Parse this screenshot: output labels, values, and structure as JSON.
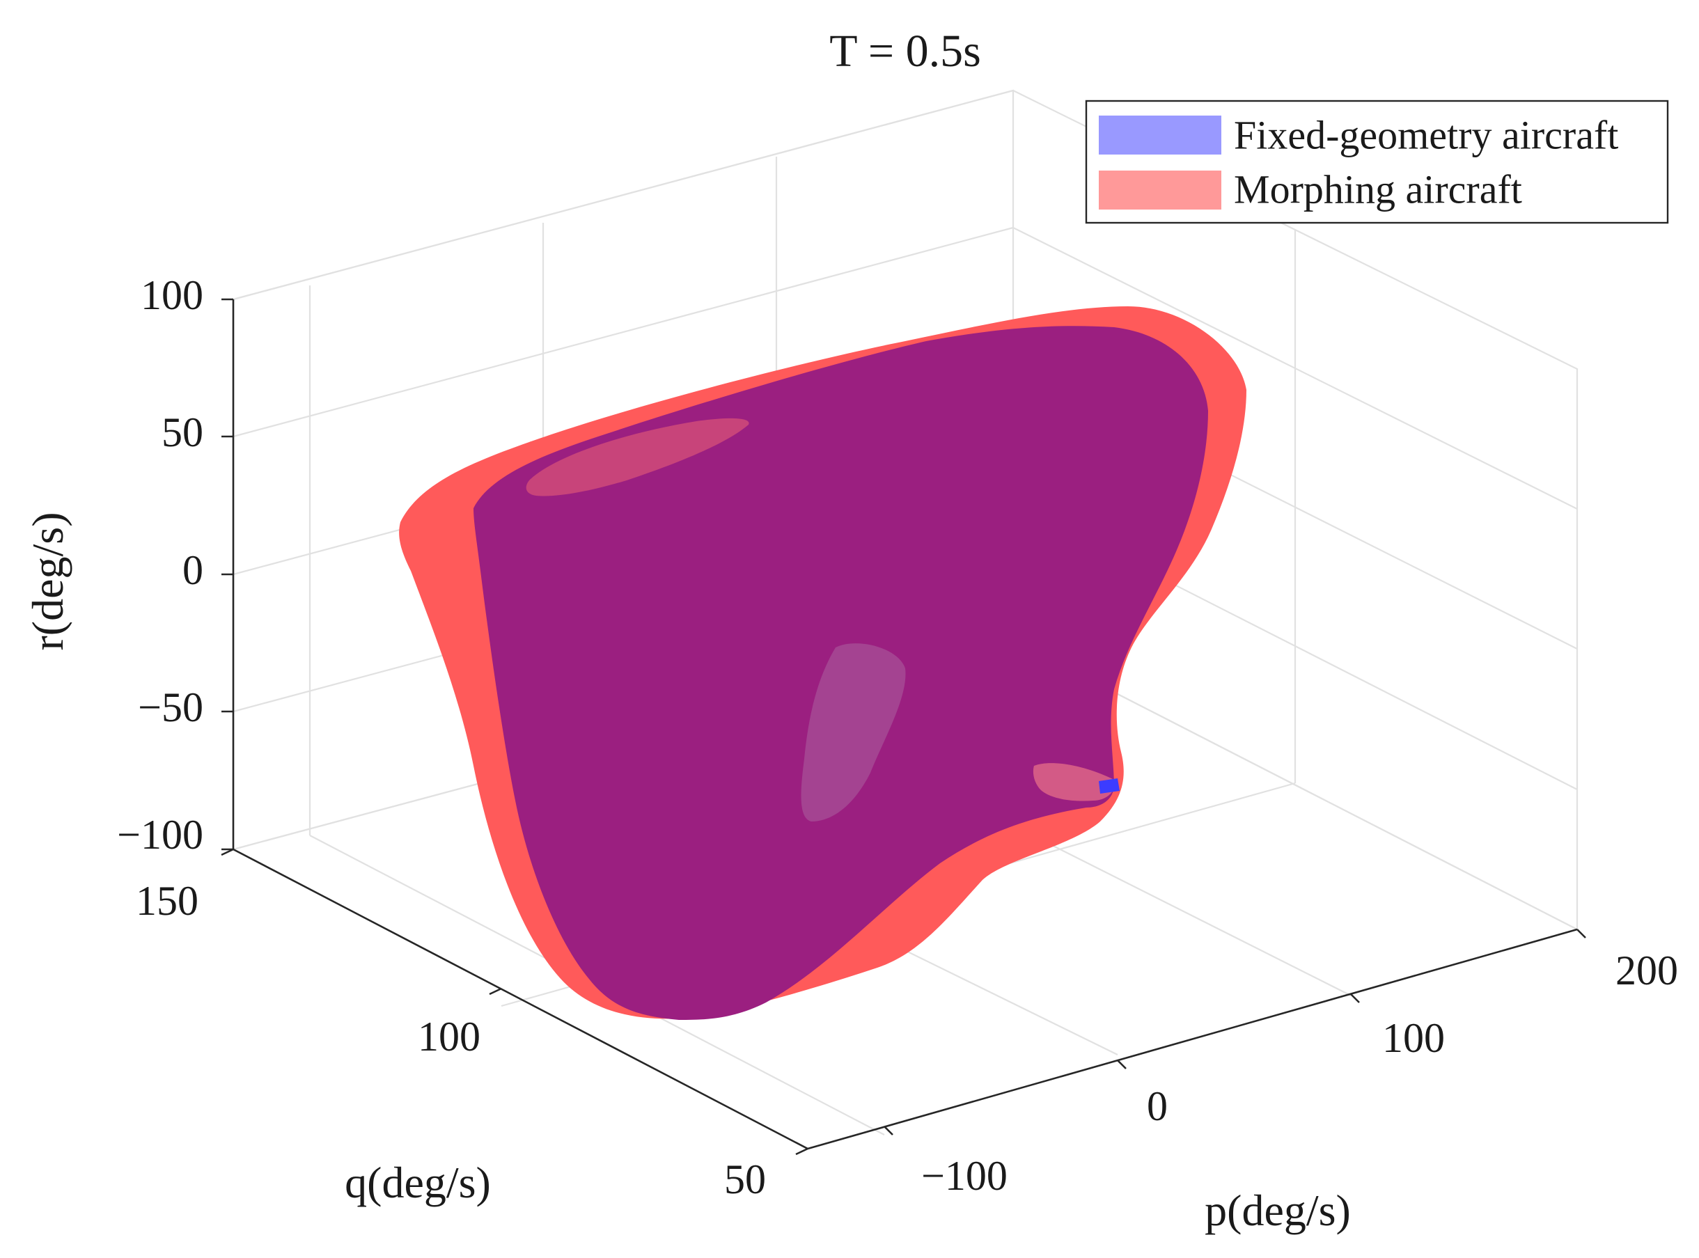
{
  "chart_data": {
    "type": "surface3d",
    "title": "T = 0.5s",
    "xlabel": "p(deg/s)",
    "ylabel": "q(deg/s)",
    "zlabel": "r(deg/s)",
    "xlim": [
      -150,
      200
    ],
    "ylim": [
      50,
      150
    ],
    "zlim": [
      -100,
      100
    ],
    "x_ticks": [
      "−100",
      "0",
      "100",
      "200"
    ],
    "y_ticks": [
      "50",
      "100",
      "150"
    ],
    "z_ticks": [
      "−100",
      "−50",
      "0",
      "50",
      "100"
    ],
    "grid": true,
    "legend_position": "top-right",
    "series": [
      {
        "name": "Fixed-geometry aircraft",
        "color": "#0000ff",
        "alpha": 0.4
      },
      {
        "name": "Morphing aircraft",
        "color": "#ff0000",
        "alpha": 0.4
      }
    ],
    "overlap_color": "#9b1f80"
  }
}
